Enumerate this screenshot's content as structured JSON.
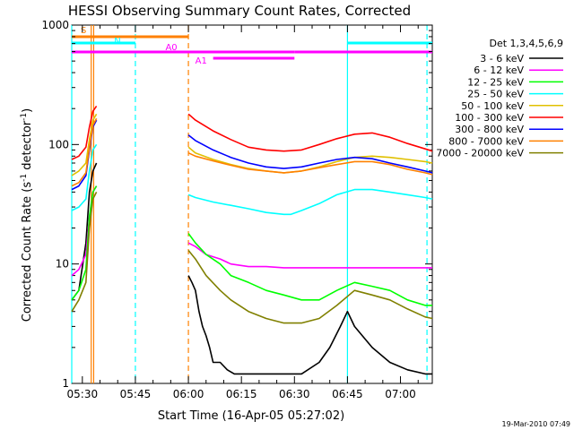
{
  "chart_data": {
    "type": "line",
    "title": "HESSI Observing Summary Count Rates, Corrected",
    "xlabel": "Start Time (16-Apr-05 05:27:02)",
    "ylabel_main": "Corrected Count Rate (s",
    "ylabel_sup1": "-1",
    "ylabel_mid": " detector",
    "ylabel_sup2": "-1",
    "ylabel_end": ")",
    "y_scale": "log",
    "ylim": [
      1,
      1000
    ],
    "xlim_minutes_after_0527": [
      0,
      102
    ],
    "x_ticks": [
      {
        "label": "05:30",
        "minutes": 3
      },
      {
        "label": "05:45",
        "minutes": 18
      },
      {
        "label": "06:00",
        "minutes": 33
      },
      {
        "label": "06:15",
        "minutes": 48
      },
      {
        "label": "06:30",
        "minutes": 63
      },
      {
        "label": "06:45",
        "minutes": 78
      },
      {
        "label": "07:00",
        "minutes": 93
      }
    ],
    "y_ticks": [
      {
        "label": "1",
        "value": 1
      },
      {
        "label": "10",
        "value": 10
      },
      {
        "label": "100",
        "value": 100
      },
      {
        "label": "1000",
        "value": 1000
      }
    ],
    "legend_title": "Det 1,3,4,5,6,9",
    "legend_position": "top-right outside",
    "series": [
      {
        "name": "3 - 6 keV",
        "color": "#000000",
        "x": [
          0,
          2,
          4,
          5,
          6,
          7,
          33,
          34,
          35,
          36,
          37,
          38,
          39,
          40,
          42,
          44,
          46,
          50,
          55,
          60,
          65,
          70,
          73,
          76,
          78,
          80,
          85,
          90,
          95,
          100,
          102
        ],
        "y": [
          5,
          6,
          15,
          40,
          60,
          70,
          8,
          7,
          6,
          4,
          3,
          2.5,
          2,
          1.5,
          1.5,
          1.3,
          1.2,
          1.2,
          1.2,
          1.2,
          1.2,
          1.5,
          2,
          3,
          4,
          3,
          2,
          1.5,
          1.3,
          1.2,
          1.2
        ]
      },
      {
        "name": "6 - 12 keV",
        "color": "#ff00ff",
        "x": [
          0,
          2,
          4,
          5,
          6,
          7,
          33,
          35,
          38,
          42,
          45,
          50,
          55,
          60,
          65,
          70,
          75,
          80,
          85,
          90,
          95,
          100,
          102
        ],
        "y": [
          8,
          9,
          12,
          25,
          40,
          45,
          15,
          14,
          12,
          11,
          10,
          9.5,
          9.5,
          9.3,
          9.3,
          9.3,
          9.3,
          9.3,
          9.3,
          9.3,
          9.3,
          9.3,
          9.3
        ]
      },
      {
        "name": "12 - 25 keV",
        "color": "#00ff00",
        "x": [
          0,
          2,
          4,
          5,
          6,
          7,
          33,
          35,
          38,
          42,
          45,
          50,
          55,
          60,
          65,
          70,
          75,
          80,
          85,
          90,
          95,
          100,
          102
        ],
        "y": [
          5,
          6,
          9,
          25,
          40,
          45,
          18,
          15,
          12,
          10,
          8,
          7,
          6,
          5.5,
          5,
          5,
          6,
          7,
          6.5,
          6,
          5,
          4.5,
          4.5
        ]
      },
      {
        "name": "25 - 50 keV",
        "color": "#00ffff",
        "x": [
          0,
          2,
          4,
          5,
          6,
          7,
          33,
          35,
          40,
          45,
          50,
          55,
          60,
          62,
          65,
          70,
          75,
          80,
          85,
          90,
          95,
          100,
          102
        ],
        "y": [
          28,
          30,
          35,
          60,
          90,
          100,
          38,
          36,
          33,
          31,
          29,
          27,
          26,
          26,
          28,
          32,
          38,
          42,
          42,
          40,
          38,
          36,
          35
        ]
      },
      {
        "name": "50 - 100 keV",
        "color": "#e0c000",
        "x": [
          0,
          2,
          4,
          5,
          6,
          7,
          33,
          35,
          40,
          45,
          50,
          55,
          60,
          65,
          70,
          75,
          80,
          85,
          90,
          95,
          100,
          102
        ],
        "y": [
          55,
          60,
          70,
          110,
          160,
          180,
          95,
          85,
          75,
          68,
          63,
          60,
          58,
          60,
          65,
          72,
          78,
          80,
          78,
          75,
          72,
          70
        ]
      },
      {
        "name": "100 - 300 keV",
        "color": "#ff0000",
        "x": [
          0,
          2,
          4,
          5,
          6,
          7,
          33,
          35,
          40,
          45,
          50,
          55,
          60,
          65,
          70,
          75,
          80,
          85,
          90,
          95,
          100,
          102
        ],
        "y": [
          75,
          80,
          95,
          140,
          190,
          210,
          180,
          160,
          130,
          110,
          95,
          90,
          88,
          90,
          100,
          112,
          122,
          125,
          115,
          102,
          92,
          88
        ]
      },
      {
        "name": "300 - 800 keV",
        "color": "#0000ff",
        "x": [
          0,
          2,
          4,
          5,
          6,
          7,
          33,
          35,
          40,
          45,
          50,
          55,
          60,
          65,
          70,
          75,
          80,
          85,
          90,
          95,
          100,
          102
        ],
        "y": [
          42,
          45,
          55,
          90,
          140,
          160,
          120,
          108,
          90,
          78,
          70,
          65,
          63,
          65,
          70,
          75,
          78,
          76,
          70,
          65,
          60,
          58
        ]
      },
      {
        "name": "800 - 7000 keV",
        "color": "#ff8000",
        "x": [
          0,
          2,
          4,
          5,
          6,
          7,
          33,
          35,
          40,
          45,
          50,
          55,
          60,
          65,
          70,
          75,
          80,
          85,
          90,
          95,
          100,
          102
        ],
        "y": [
          45,
          48,
          58,
          95,
          145,
          165,
          85,
          80,
          73,
          67,
          62,
          60,
          58,
          60,
          64,
          68,
          72,
          72,
          68,
          62,
          58,
          56
        ]
      },
      {
        "name": "7000 - 20000 keV",
        "color": "#808000",
        "x": [
          0,
          2,
          4,
          5,
          6,
          7,
          33,
          35,
          38,
          42,
          45,
          50,
          55,
          60,
          65,
          70,
          75,
          80,
          85,
          90,
          95,
          100,
          102
        ],
        "y": [
          4,
          5,
          7,
          20,
          35,
          40,
          13,
          11,
          8,
          6,
          5,
          4,
          3.5,
          3.2,
          3.2,
          3.5,
          4.5,
          6,
          5.5,
          5,
          4.2,
          3.6,
          3.5
        ]
      }
    ],
    "attenuator_bars": [
      {
        "label": "S",
        "color": "#ff8000",
        "x_start": 0,
        "x_end": 33
      },
      {
        "label": "N",
        "color": "#00ffff",
        "x_start": 0,
        "x_end": 18
      },
      {
        "label": "N",
        "color": "#00ffff",
        "x_start": 78,
        "x_end": 102
      },
      {
        "label": "A0",
        "color": "#ff00ff",
        "x_start": 0,
        "x_end": 63
      },
      {
        "label": "A0",
        "color": "#ff00ff",
        "x_start": 63,
        "x_end": 102
      },
      {
        "label": "A1",
        "color": "#ff00ff",
        "x_start": 40,
        "x_end": 63
      }
    ],
    "vertical_lines": [
      {
        "minutes": 0,
        "color": "#00ffff",
        "style": "solid"
      },
      {
        "minutes": 5.5,
        "color": "#ff8000",
        "style": "solid"
      },
      {
        "minutes": 6.2,
        "color": "#ff8000",
        "style": "solid"
      },
      {
        "minutes": 18,
        "color": "#00ffff",
        "style": "dashed"
      },
      {
        "minutes": 33,
        "color": "#ff8000",
        "style": "dashed"
      },
      {
        "minutes": 78,
        "color": "#00ffff",
        "style": "solid"
      },
      {
        "minutes": 100.5,
        "color": "#00ffff",
        "style": "dashed"
      }
    ]
  },
  "footer_date": "19-Mar-2010 07:49"
}
